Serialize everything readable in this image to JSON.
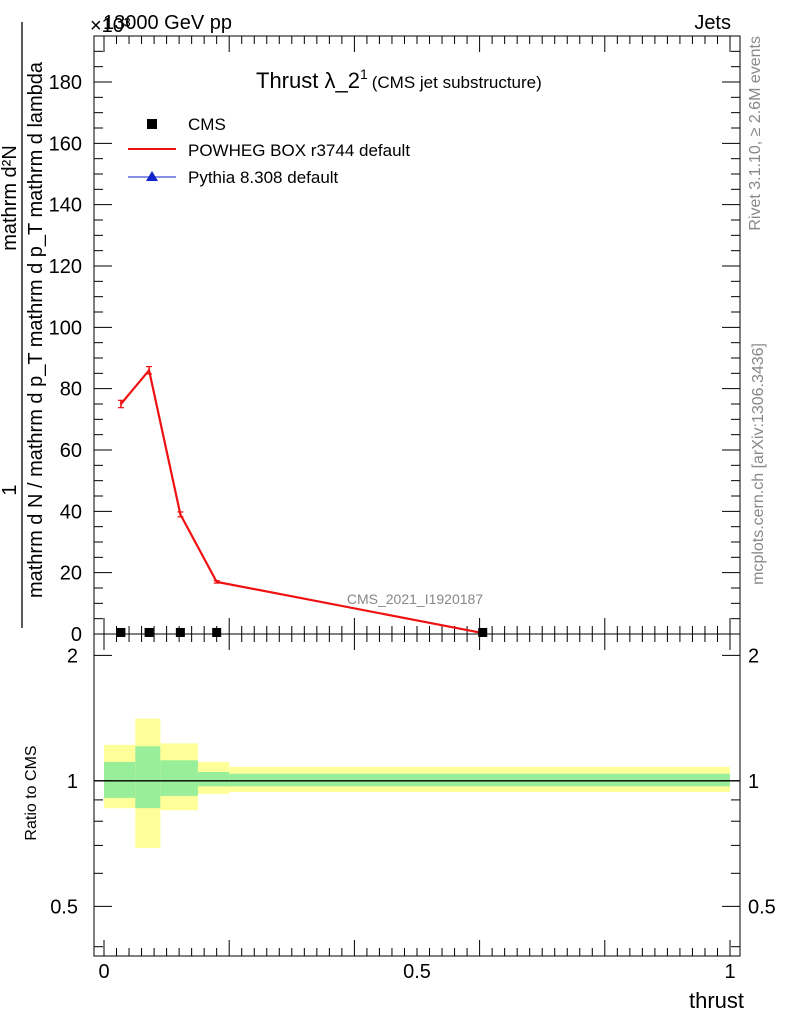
{
  "header": {
    "energy_label": "13000 GeV pp",
    "exponent_label": "×10³",
    "process_label": "Jets"
  },
  "side_labels": {
    "rivet": "Rivet 3.1.10, ≥ 2.6M events",
    "mcplots": "mcplots.cern.ch [arXiv:1306.3436]"
  },
  "chart_data": [
    {
      "type": "line",
      "title": "Thrust λ_2",
      "title_superscript": "1",
      "subtitle": "(CMS jet substructure)",
      "watermark": "CMS_2021_I1920187",
      "ylabel_numerator": "1",
      "ylabel_denominator": "mathrm d N / mathrm d p_T mathrm d p_T mathrm d lambda",
      "ylabel_top": "mathrm d²N",
      "xlim": [
        0,
        1
      ],
      "ylim": [
        0,
        195
      ],
      "yticks": [
        0,
        20,
        40,
        60,
        80,
        100,
        120,
        140,
        160,
        180
      ],
      "ytick_labels": [
        "0",
        "20",
        "40",
        "60",
        "80",
        "100",
        "120",
        "140",
        "160",
        "180"
      ],
      "legend_position": "top-left",
      "legend": [
        "CMS",
        "POWHEG BOX r3744 default",
        "Pythia 8.308 default"
      ],
      "series": [
        {
          "name": "CMS",
          "marker": "square",
          "color": "#000000",
          "x": [
            0.027,
            0.072,
            0.122,
            0.18,
            0.605
          ],
          "y": [
            0.5,
            0.5,
            0.5,
            0.5,
            0.5
          ]
        },
        {
          "name": "POWHEG BOX r3744 default",
          "marker": "line",
          "color": "#ee1111",
          "x": [
            0.027,
            0.072,
            0.122,
            0.18,
            0.605
          ],
          "y": [
            75,
            86,
            39,
            17,
            0.3
          ],
          "yerr": [
            1.2,
            1.2,
            0.8,
            0.4,
            0.1
          ]
        },
        {
          "name": "Pythia 8.308 default",
          "marker": "triangle",
          "color": "#1122cc",
          "x": [],
          "y": []
        }
      ]
    },
    {
      "type": "area",
      "ylabel": "Ratio to CMS",
      "xlabel": "thrust",
      "xlim": [
        0,
        1
      ],
      "ylim": [
        0.38,
        2.25
      ],
      "log_y": true,
      "yticks": [
        0.5,
        1,
        2
      ],
      "ytick_labels": [
        "0.5",
        "1",
        "2"
      ],
      "xticks": [
        0,
        0.5,
        1
      ],
      "xtick_labels": [
        "0",
        "0.5",
        "1"
      ],
      "bins": [
        {
          "lo": 0.0,
          "hi": 0.05,
          "inner": [
            0.91,
            1.11
          ],
          "outer": [
            0.86,
            1.22
          ]
        },
        {
          "lo": 0.05,
          "hi": 0.09,
          "inner": [
            0.86,
            1.21
          ],
          "outer": [
            0.69,
            1.41
          ]
        },
        {
          "lo": 0.09,
          "hi": 0.15,
          "inner": [
            0.92,
            1.12
          ],
          "outer": [
            0.85,
            1.23
          ]
        },
        {
          "lo": 0.15,
          "hi": 0.2,
          "inner": [
            0.97,
            1.05
          ],
          "outer": [
            0.93,
            1.11
          ]
        },
        {
          "lo": 0.2,
          "hi": 1.0,
          "inner": [
            0.97,
            1.04
          ],
          "outer": [
            0.94,
            1.08
          ]
        }
      ],
      "reference": 1,
      "inner_color": "#99ee99",
      "outer_color": "#ffff99"
    }
  ]
}
